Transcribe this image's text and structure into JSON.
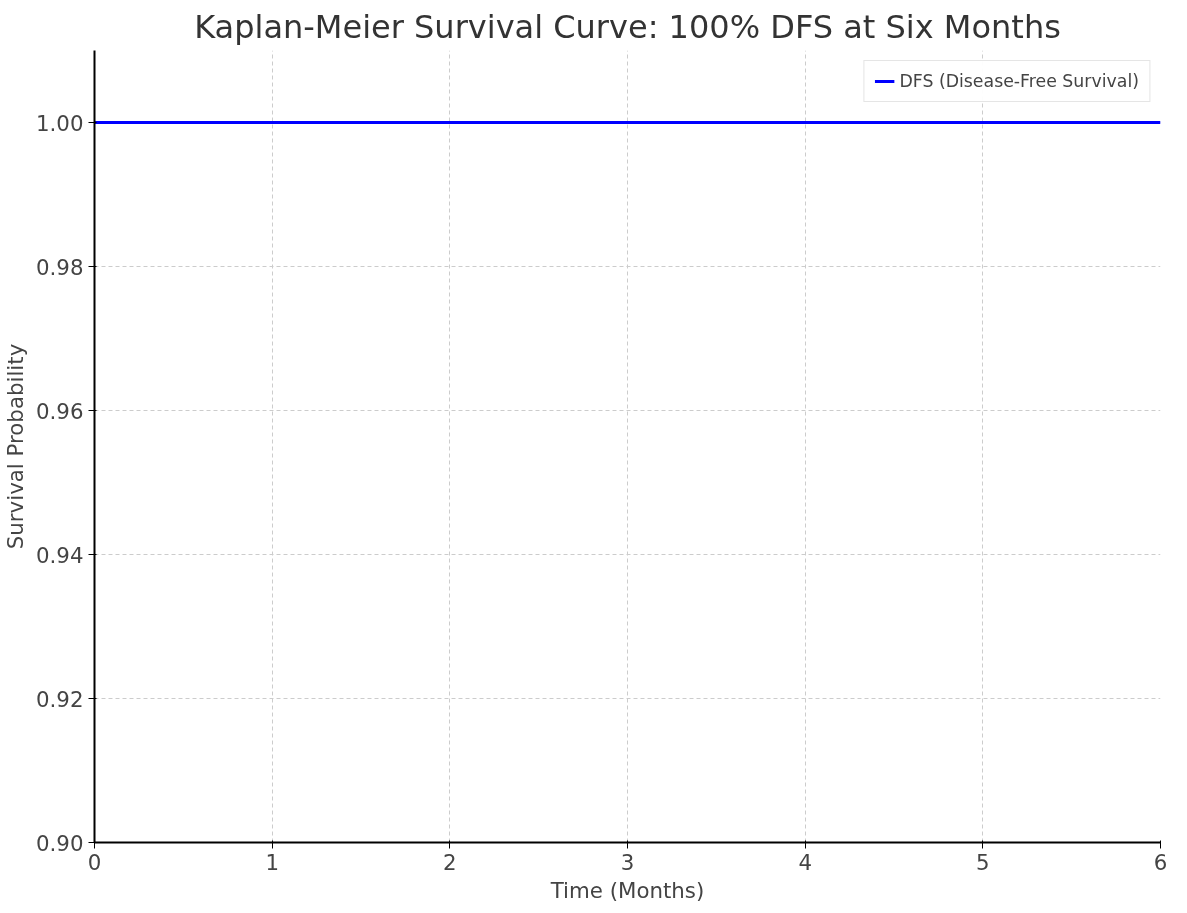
{
  "chart_data": {
    "type": "step",
    "title": "Kaplan-Meier Survival Curve: 100% DFS at Six Months",
    "xlabel": "Time (Months)",
    "ylabel": "Survival Probability",
    "x": [
      0,
      6
    ],
    "series": [
      {
        "name": "DFS (Disease-Free Survival)",
        "color": "#0000ff",
        "values": [
          1.0,
          1.0
        ]
      }
    ],
    "xlim": [
      0,
      6
    ],
    "ylim": [
      0.9,
      1.01
    ],
    "xticks": [
      0,
      1,
      2,
      3,
      4,
      5,
      6
    ],
    "yticks": [
      {
        "value": 0.9,
        "label": "0.90"
      },
      {
        "value": 0.92,
        "label": "0.92"
      },
      {
        "value": 0.94,
        "label": "0.94"
      },
      {
        "value": 0.96,
        "label": "0.96"
      },
      {
        "value": 0.98,
        "label": "0.98"
      },
      {
        "value": 1.0,
        "label": "1.00"
      }
    ],
    "grid": true,
    "legend": "top right",
    "line_style": "solid"
  }
}
